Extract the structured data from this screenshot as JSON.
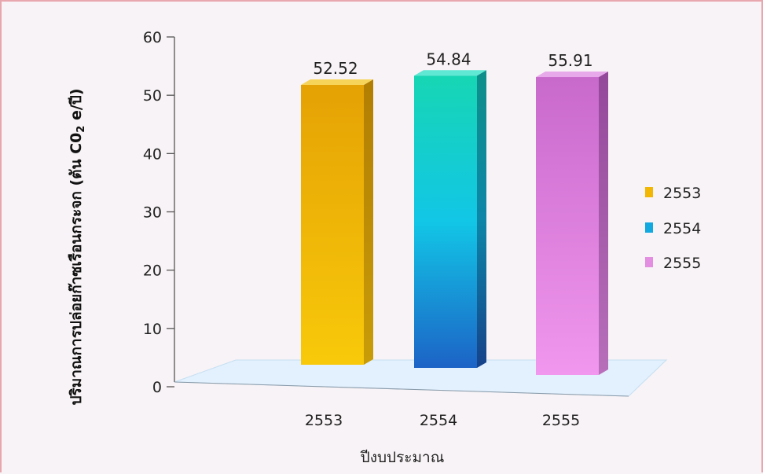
{
  "chart_data": {
    "type": "bar",
    "categories": [
      "2553",
      "2554",
      "2555"
    ],
    "values": [
      52.52,
      54.84,
      55.91
    ],
    "value_labels": [
      "52.52",
      "54.84",
      "55.91"
    ],
    "ylim": [
      0,
      60
    ],
    "yticks": [
      0,
      10,
      20,
      30,
      40,
      50,
      60
    ],
    "ylabel_main": "ปริมาณการปล่อยก๊าซเรือนกระจก (ตัน C0",
    "ylabel_sub": "2",
    "ylabel_end": " e/ปี)",
    "xlabel": "ปีงบประมาณ",
    "legend": {
      "position": "right",
      "entries": [
        {
          "label": "2553",
          "color": "#f2b704"
        },
        {
          "label": "2554",
          "color": "#12a8e0"
        },
        {
          "label": "2555",
          "color": "#e48ee2"
        }
      ]
    },
    "grid": false,
    "style": "3d"
  }
}
